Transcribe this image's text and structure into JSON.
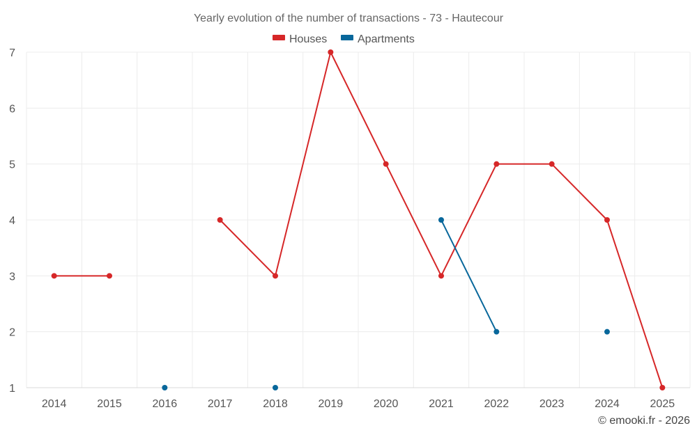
{
  "chart_data": {
    "type": "line",
    "title": "Yearly evolution of the number of transactions - 73 - Hautecour",
    "xlabel": "",
    "ylabel": "",
    "categories": [
      "2014",
      "2015",
      "2016",
      "2017",
      "2018",
      "2019",
      "2020",
      "2021",
      "2022",
      "2023",
      "2024",
      "2025"
    ],
    "ylim": [
      1,
      7
    ],
    "yticks": [
      1,
      2,
      3,
      4,
      5,
      6,
      7
    ],
    "grid": true,
    "legend_position": "top-center",
    "series": [
      {
        "name": "Houses",
        "color": "#d62728",
        "values": [
          3,
          3,
          null,
          4,
          3,
          7,
          5,
          3,
          5,
          5,
          4,
          1
        ]
      },
      {
        "name": "Apartments",
        "color": "#08679b",
        "values": [
          null,
          null,
          1,
          null,
          1,
          null,
          null,
          4,
          2,
          null,
          2,
          null
        ]
      }
    ]
  },
  "credit": "© emooki.fr - 2026"
}
